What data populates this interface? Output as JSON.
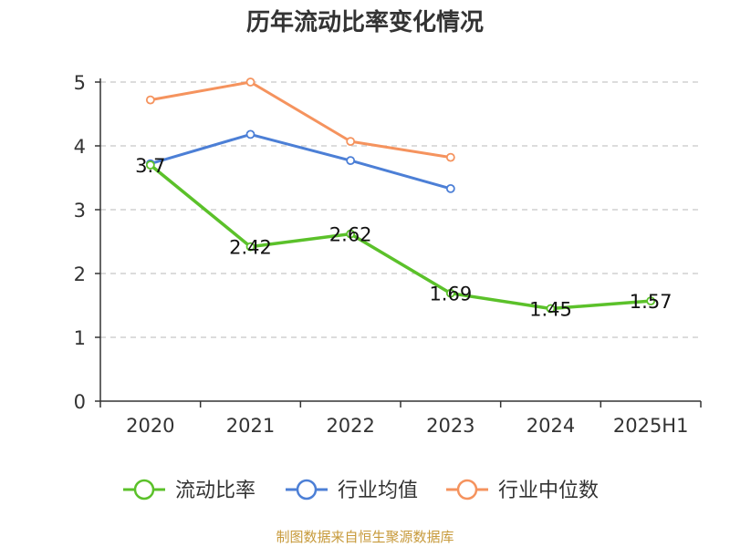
{
  "chart_data": {
    "type": "line",
    "title": "历年流动比率变化情况",
    "categories": [
      "2020",
      "2021",
      "2022",
      "2023",
      "2024",
      "2025H1"
    ],
    "ylim": [
      0,
      5
    ],
    "yticks": [
      "0",
      "1",
      "2",
      "3",
      "4",
      "5"
    ],
    "grid": true,
    "legend_position": "bottom",
    "series": [
      {
        "name": "流动比率",
        "color": "#5bc12a",
        "values": [
          3.7,
          2.42,
          2.62,
          1.69,
          1.45,
          1.57
        ],
        "labels": [
          "3.7",
          "2.42",
          "2.62",
          "1.69",
          "1.45",
          "1.57"
        ]
      },
      {
        "name": "行业均值",
        "color": "#4c7fd6",
        "values": [
          3.72,
          4.18,
          3.77,
          3.33,
          null,
          null
        ]
      },
      {
        "name": "行业中位数",
        "color": "#f5935e",
        "values": [
          4.72,
          5.0,
          4.07,
          3.82,
          null,
          null
        ]
      }
    ]
  },
  "footer": {
    "source": "制图数据来自恒生聚源数据库"
  }
}
